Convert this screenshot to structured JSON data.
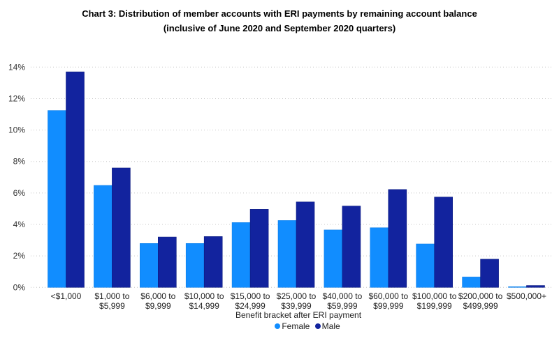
{
  "chart_data": {
    "type": "bar",
    "title": "Chart 3: Distribution of member accounts with ERI payments by remaining account balance",
    "subtitle": "(inclusive of June 2020 and September 2020 quarters)",
    "xlabel": "Benefit bracket after ERI payment",
    "ylabel": "",
    "ylim": [
      0,
      14
    ],
    "yticks": [
      "0%",
      "2%",
      "4%",
      "6%",
      "8%",
      "10%",
      "12%",
      "14%"
    ],
    "grid": true,
    "legend": "bottom",
    "categories": [
      [
        "<$1,000"
      ],
      [
        "$1,000 to",
        "$5,999"
      ],
      [
        "$6,000 to",
        "$9,999"
      ],
      [
        "$10,000 to",
        "$14,999"
      ],
      [
        "$15,000 to",
        "$24,999"
      ],
      [
        "$25,000 to",
        "$39,999"
      ],
      [
        "$40,000 to",
        "$59,999"
      ],
      [
        "$60,000 to",
        "$99,999"
      ],
      [
        "$100,000 to",
        "$199,999"
      ],
      [
        "$200,000 to",
        "$499,999"
      ],
      [
        "$500,000+"
      ]
    ],
    "series": [
      {
        "name": "Female",
        "color": "#118DFF",
        "values": [
          11.24,
          6.48,
          2.79,
          2.79,
          4.12,
          4.25,
          3.65,
          3.79,
          2.76,
          0.66,
          0.04
        ]
      },
      {
        "name": "Male",
        "color": "#12239E",
        "values": [
          13.7,
          7.59,
          3.2,
          3.23,
          4.96,
          5.43,
          5.17,
          6.22,
          5.74,
          1.79,
          0.12
        ]
      }
    ]
  }
}
